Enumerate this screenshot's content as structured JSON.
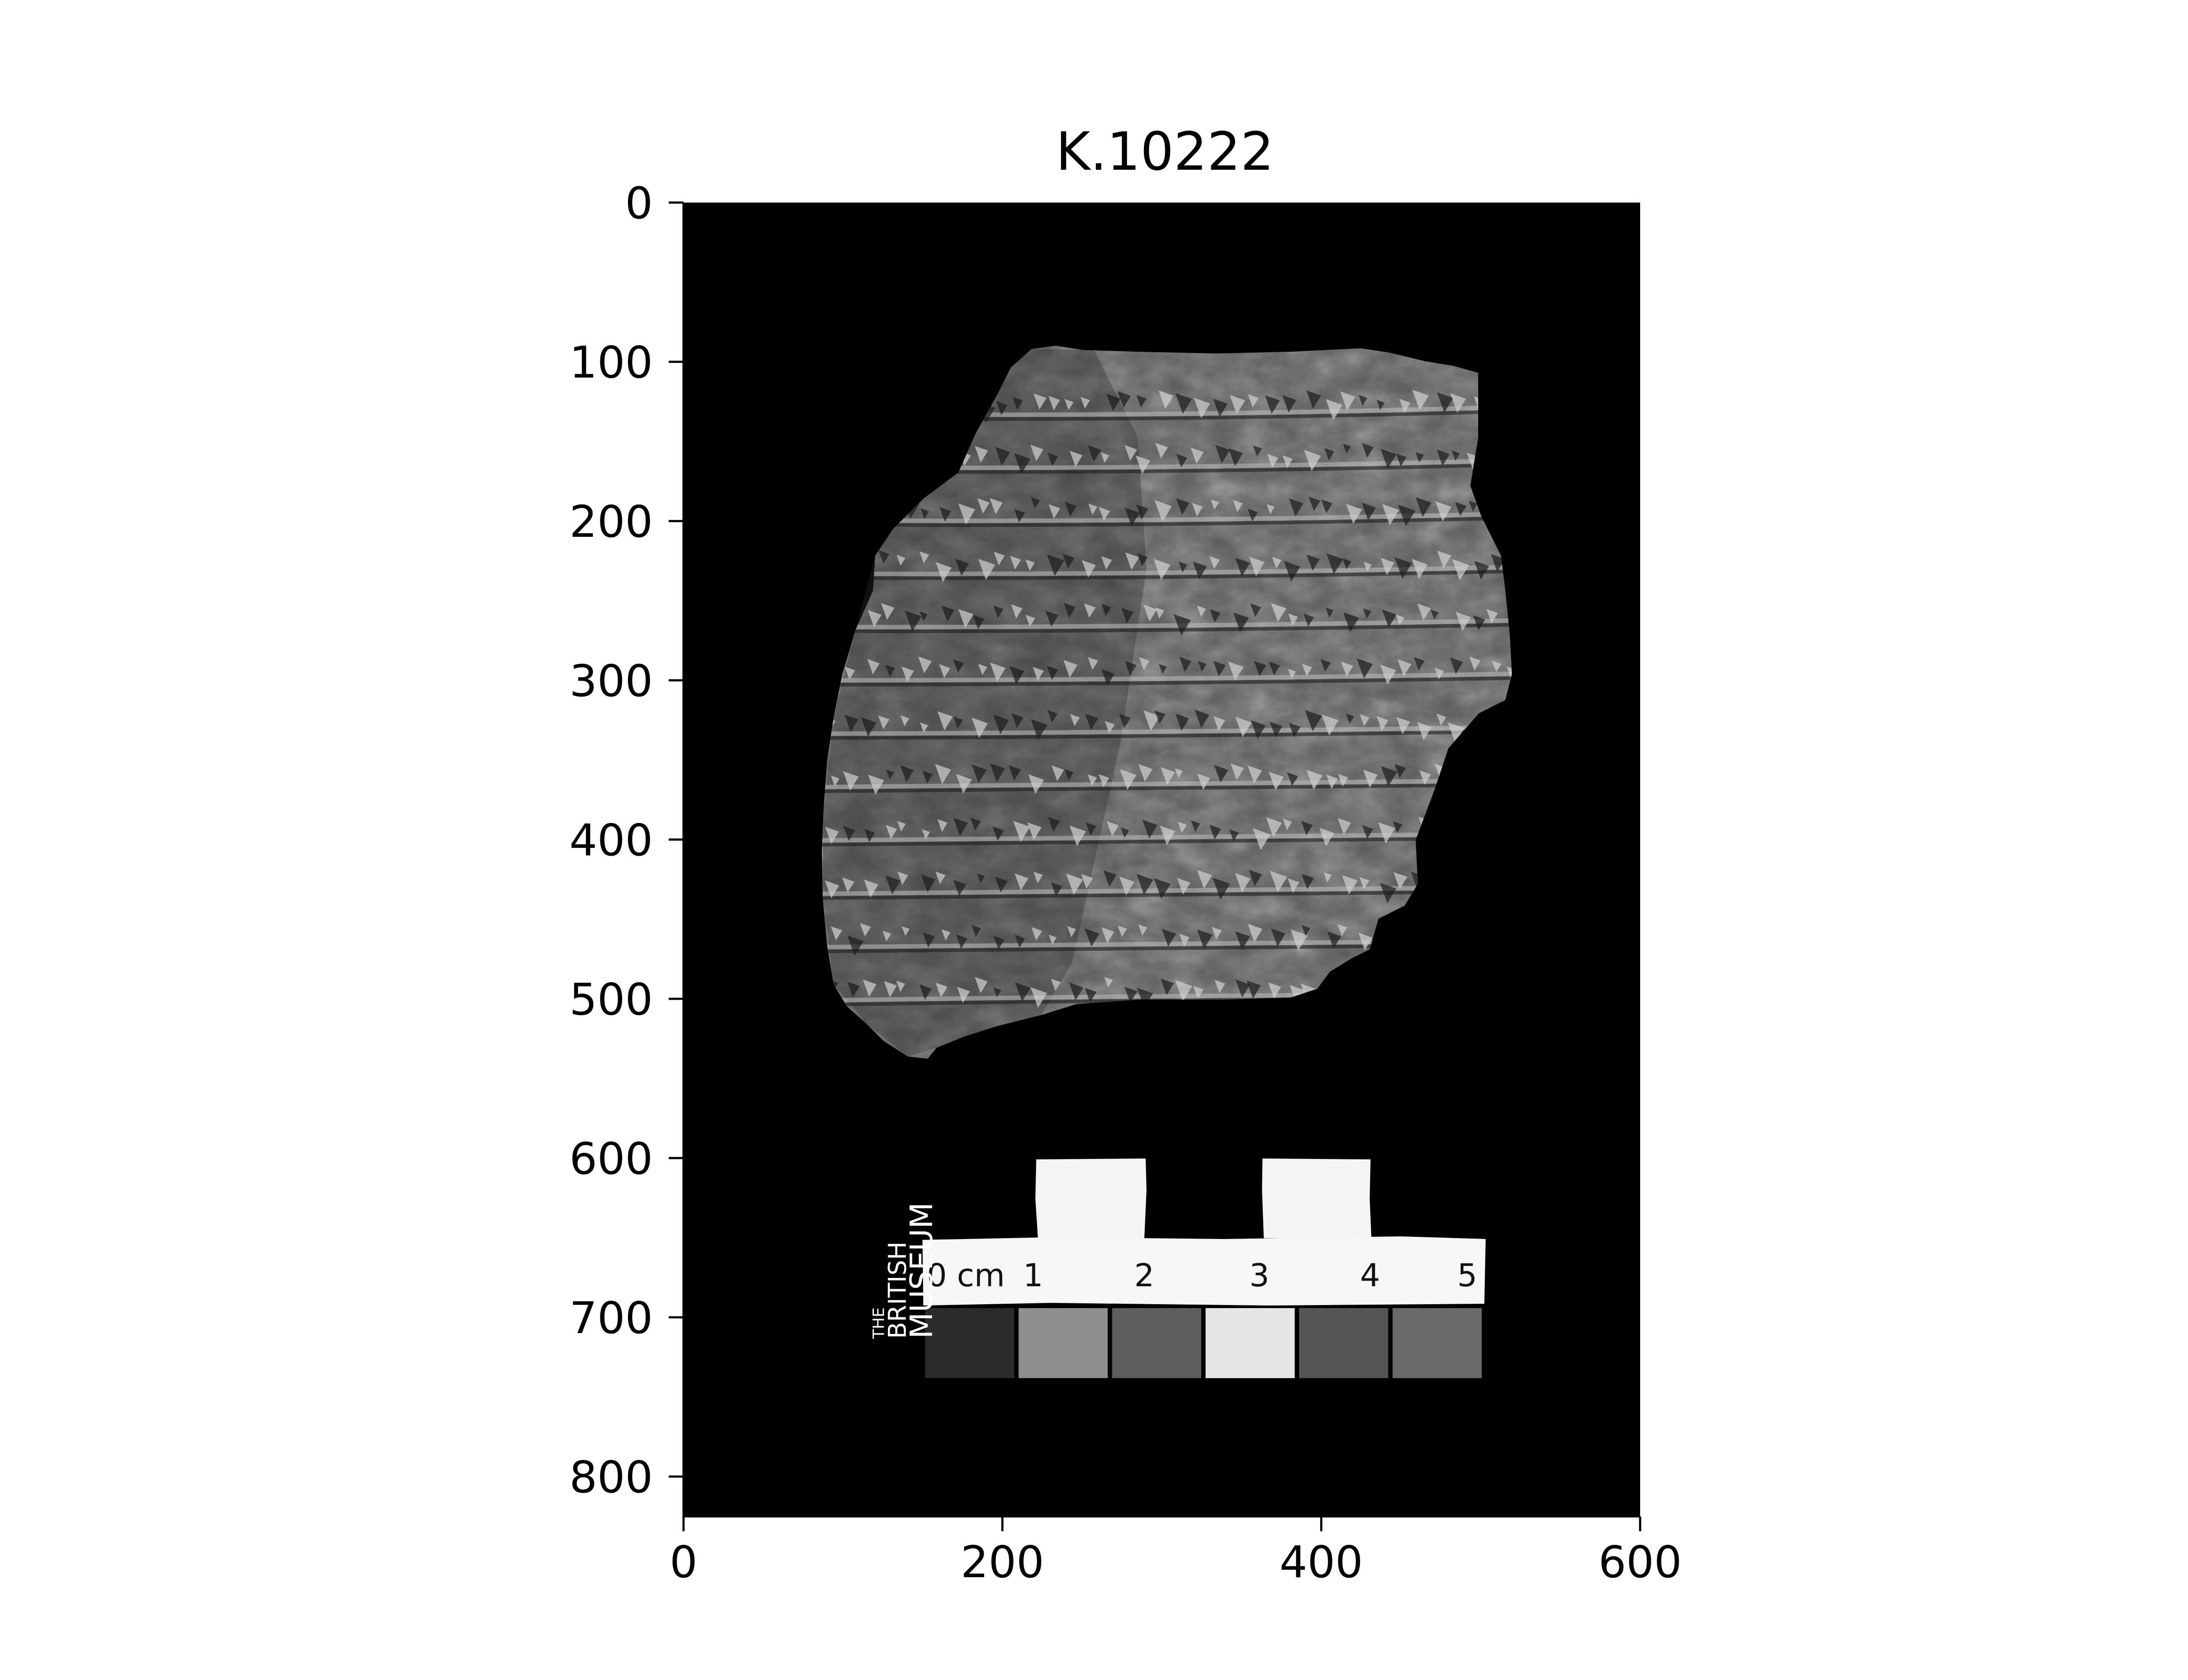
{
  "figure": {
    "title": "K.10222"
  },
  "image": {
    "description_kind": "photograph",
    "background_color": "#000000",
    "tablet_color": "#5a5a5a",
    "x_range": [
      0,
      600
    ],
    "y_range": [
      0,
      825
    ]
  },
  "axes": {
    "x_ticks": [
      0,
      200,
      400,
      600
    ],
    "y_ticks": [
      0,
      100,
      200,
      300,
      400,
      500,
      600,
      700,
      800
    ]
  },
  "scale_bar": {
    "labels": [
      "0 cm",
      "1",
      "2",
      "3",
      "4",
      "5"
    ],
    "logo": [
      "THE",
      "BRITISH",
      "MUSEUM"
    ],
    "swatches": [
      "#2b2b2b",
      "#8e8e8e",
      "#5e5e5e",
      "#e6e6e6",
      "#555555",
      "#6a6a6a"
    ]
  }
}
